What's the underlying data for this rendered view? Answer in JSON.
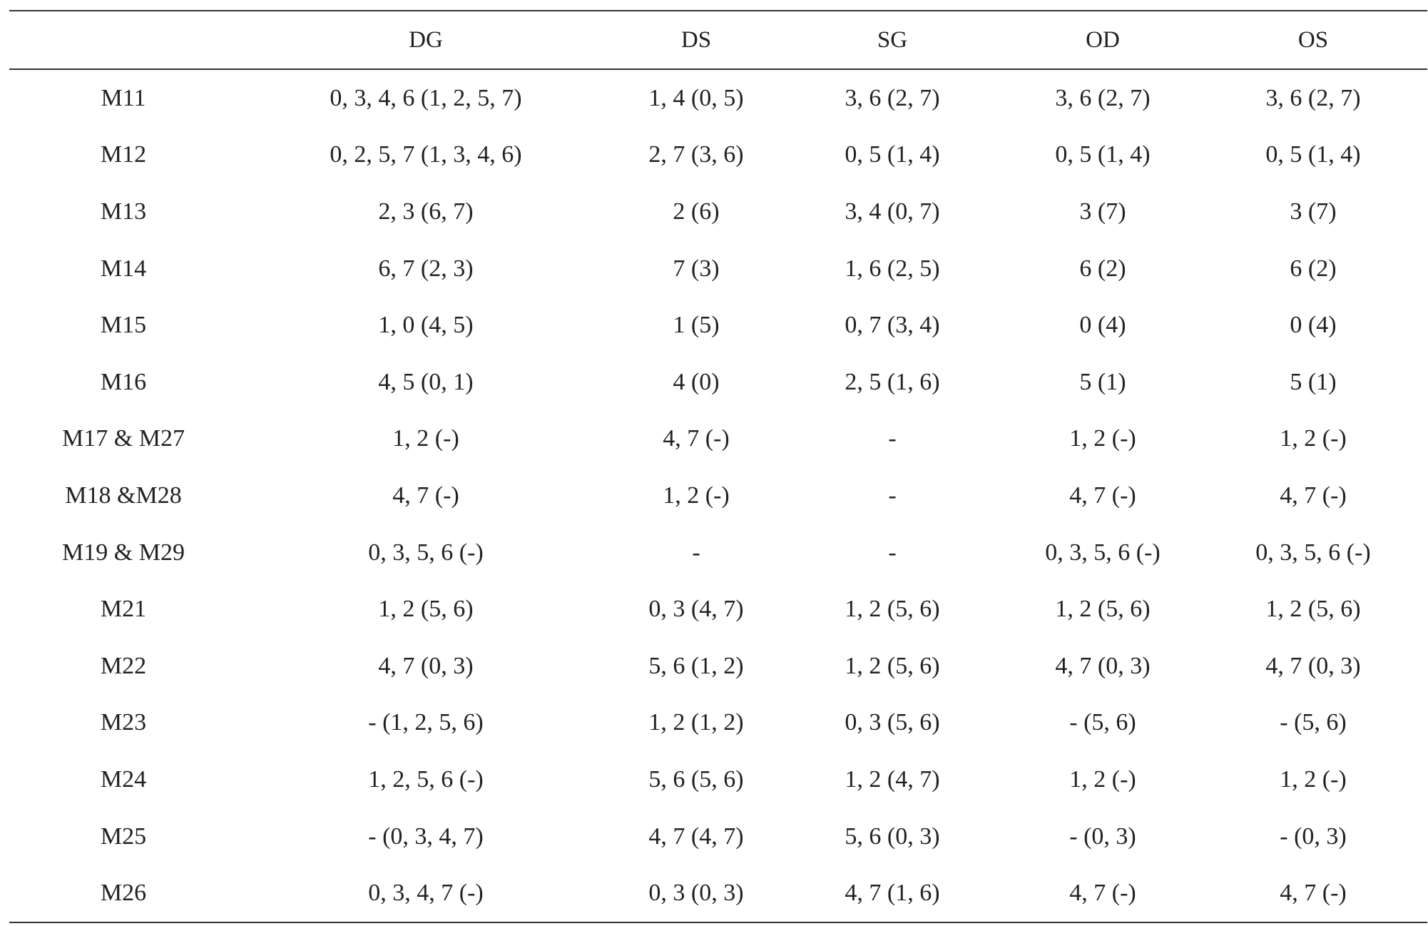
{
  "table": {
    "headers": [
      "",
      "DG",
      "DS",
      "SG",
      "OD",
      "OS"
    ],
    "rows": [
      [
        "M11",
        "0, 3, 4, 6 (1, 2, 5, 7)",
        "1, 4 (0, 5)",
        "3, 6 (2, 7)",
        "3, 6 (2, 7)",
        "3, 6 (2, 7)"
      ],
      [
        "M12",
        "0, 2, 5, 7 (1, 3, 4, 6)",
        "2, 7 (3, 6)",
        "0, 5 (1, 4)",
        "0, 5 (1, 4)",
        "0, 5 (1, 4)"
      ],
      [
        "M13",
        "2, 3 (6, 7)",
        "2 (6)",
        "3, 4 (0, 7)",
        "3 (7)",
        "3 (7)"
      ],
      [
        "M14",
        "6, 7 (2, 3)",
        "7 (3)",
        "1, 6 (2, 5)",
        "6 (2)",
        "6 (2)"
      ],
      [
        "M15",
        "1, 0 (4, 5)",
        "1 (5)",
        "0, 7 (3, 4)",
        "0 (4)",
        "0 (4)"
      ],
      [
        "M16",
        "4, 5 (0, 1)",
        "4 (0)",
        "2, 5 (1, 6)",
        "5 (1)",
        "5 (1)"
      ],
      [
        "M17 & M27",
        "1, 2 (-)",
        "4, 7 (-)",
        "-",
        "1, 2 (-)",
        "1, 2 (-)"
      ],
      [
        "M18 &M28",
        "4, 7 (-)",
        "1, 2 (-)",
        "-",
        "4, 7 (-)",
        "4, 7 (-)"
      ],
      [
        "M19 & M29",
        "0, 3, 5, 6 (-)",
        "-",
        "-",
        "0, 3, 5, 6 (-)",
        "0, 3, 5, 6 (-)"
      ],
      [
        "M21",
        "1, 2 (5, 6)",
        "0, 3 (4, 7)",
        "1, 2 (5, 6)",
        "1, 2 (5, 6)",
        "1, 2 (5, 6)"
      ],
      [
        "M22",
        "4, 7 (0, 3)",
        "5, 6 (1, 2)",
        "1, 2 (5, 6)",
        "4, 7 (0, 3)",
        "4, 7 (0, 3)"
      ],
      [
        "M23",
        "- (1, 2, 5, 6)",
        "1, 2 (1, 2)",
        "0, 3 (5, 6)",
        "- (5, 6)",
        "- (5, 6)"
      ],
      [
        "M24",
        "1, 2, 5, 6 (-)",
        "5, 6 (5, 6)",
        "1, 2 (4, 7)",
        "1, 2 (-)",
        "1, 2 (-)"
      ],
      [
        "M25",
        "- (0, 3, 4, 7)",
        "4, 7 (4, 7)",
        "5, 6 (0, 3)",
        "- (0, 3)",
        "- (0, 3)"
      ],
      [
        "M26",
        "0, 3, 4, 7 (-)",
        "0, 3 (0, 3)",
        "4, 7 (1, 6)",
        "4, 7 (-)",
        "4, 7 (-)"
      ]
    ]
  }
}
